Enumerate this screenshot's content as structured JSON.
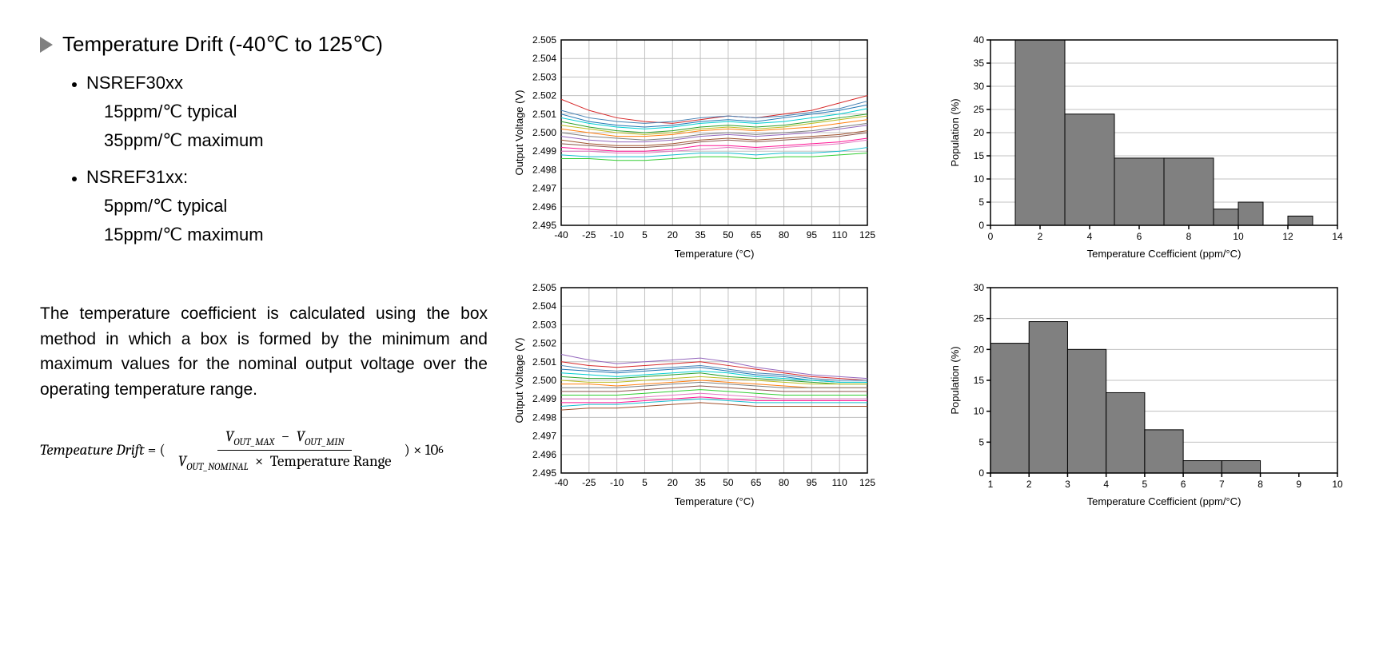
{
  "heading": "Temperature Drift (-40℃ to 125℃)",
  "bullets": [
    {
      "label": "NSREF30xx",
      "lines": [
        "15ppm/℃ typical",
        "35ppm/℃ maximum"
      ]
    },
    {
      "label": "NSREF31xx:",
      "lines": [
        "5ppm/℃ typical",
        "15ppm/℃ maximum"
      ]
    }
  ],
  "paragraph": "The temperature coefficient is calculated using the box method in which a box is formed by the minimum and maximum values for the nominal output voltage over the operating temperature range.",
  "formula": {
    "lhs": "Tempeature Drift",
    "num_a": "V",
    "num_a_sub": "OUT_MAX",
    "num_b": "V",
    "num_b_sub": "OUT_MIN",
    "den_a": "V",
    "den_a_sub": "OUT_NOMINAL",
    "den_b": "Temperature Range",
    "tail": ") × 10",
    "tail_sup": "6"
  },
  "line_chart_top": {
    "xlabel": "Temperature (°C)",
    "ylabel": "Output Voltage (V)",
    "xmin": -40,
    "xmax": 125,
    "xtick_step": 15,
    "ymin": 2.495,
    "ymax": 2.505,
    "ytick_step": 0.001,
    "xticks": [
      "-40",
      "-25",
      "-10",
      "5",
      "20",
      "35",
      "50",
      "65",
      "80",
      "95",
      "110",
      "125"
    ],
    "yticks": [
      "2.495",
      "2.496",
      "2.497",
      "2.498",
      "2.499",
      "2.500",
      "2.501",
      "2.502",
      "2.503",
      "2.504",
      "2.505"
    ],
    "grid_color": "#c0c0c0",
    "series_width": 1,
    "series": [
      {
        "color": "#d62728",
        "y": [
          2.5018,
          2.5012,
          2.5008,
          2.5006,
          2.5005,
          2.5007,
          2.5009,
          2.5008,
          2.501,
          2.5012,
          2.5016,
          2.502
        ]
      },
      {
        "color": "#1f77b4",
        "y": [
          2.501,
          2.5006,
          2.5004,
          2.5003,
          2.5004,
          2.5006,
          2.5007,
          2.5006,
          2.5008,
          2.501,
          2.5012,
          2.5015
        ]
      },
      {
        "color": "#2ca02c",
        "y": [
          2.5006,
          2.5003,
          2.5001,
          2.5,
          2.5001,
          2.5003,
          2.5004,
          2.5003,
          2.5004,
          2.5006,
          2.5008,
          2.501
        ]
      },
      {
        "color": "#ff7f0e",
        "y": [
          2.5002,
          2.5,
          2.4998,
          2.4998,
          2.4999,
          2.5001,
          2.5002,
          2.5001,
          2.5002,
          2.5003,
          2.5005,
          2.5007
        ]
      },
      {
        "color": "#9467bd",
        "y": [
          2.4998,
          2.4996,
          2.4995,
          2.4995,
          2.4996,
          2.4998,
          2.4999,
          2.4998,
          2.4999,
          2.5,
          2.5002,
          2.5004
        ]
      },
      {
        "color": "#8c564b",
        "y": [
          2.4994,
          2.4993,
          2.4992,
          2.4992,
          2.4993,
          2.4995,
          2.4996,
          2.4995,
          2.4996,
          2.4997,
          2.4998,
          2.5
        ]
      },
      {
        "color": "#e377c2",
        "y": [
          2.499,
          2.499,
          2.4989,
          2.4989,
          2.499,
          2.4991,
          2.4992,
          2.4991,
          2.4992,
          2.4993,
          2.4994,
          2.4996
        ]
      },
      {
        "color": "#17becf",
        "y": [
          2.4988,
          2.4987,
          2.4987,
          2.4987,
          2.4988,
          2.4989,
          2.4989,
          2.4988,
          2.4989,
          2.4989,
          2.499,
          2.4992
        ]
      },
      {
        "color": "#bcbd22",
        "y": [
          2.5004,
          2.5002,
          2.5,
          2.4999,
          2.5,
          2.5002,
          2.5003,
          2.5002,
          2.5003,
          2.5005,
          2.5007,
          2.5009
        ]
      },
      {
        "color": "#7f7f7f",
        "y": [
          2.5,
          2.4998,
          2.4997,
          2.4996,
          2.4997,
          2.4999,
          2.5,
          2.4999,
          2.5,
          2.5001,
          2.5003,
          2.5005
        ]
      },
      {
        "color": "#ff1493",
        "y": [
          2.4992,
          2.4991,
          2.499,
          2.499,
          2.4991,
          2.4993,
          2.4993,
          2.4992,
          2.4993,
          2.4994,
          2.4995,
          2.4997
        ]
      },
      {
        "color": "#00ced1",
        "y": [
          2.5008,
          2.5005,
          2.5003,
          2.5002,
          2.5003,
          2.5005,
          2.5006,
          2.5005,
          2.5006,
          2.5008,
          2.501,
          2.5013
        ]
      },
      {
        "color": "#a0522d",
        "y": [
          2.4996,
          2.4994,
          2.4993,
          2.4993,
          2.4994,
          2.4996,
          2.4997,
          2.4996,
          2.4997,
          2.4998,
          2.4999,
          2.5001
        ]
      },
      {
        "color": "#4682b4",
        "y": [
          2.5012,
          2.5008,
          2.5006,
          2.5005,
          2.5006,
          2.5008,
          2.5009,
          2.5008,
          2.5009,
          2.5011,
          2.5013,
          2.5017
        ]
      },
      {
        "color": "#32cd32",
        "y": [
          2.4986,
          2.4986,
          2.4985,
          2.4985,
          2.4986,
          2.4987,
          2.4987,
          2.4986,
          2.4987,
          2.4987,
          2.4988,
          2.4989
        ]
      }
    ]
  },
  "line_chart_bottom": {
    "xlabel": "Temperature (°C)",
    "ylabel": "Output Voltage (V)",
    "xmin": -40,
    "xmax": 125,
    "xtick_step": 15,
    "ymin": 2.495,
    "ymax": 2.505,
    "ytick_step": 0.001,
    "xticks": [
      "-40",
      "-25",
      "-10",
      "5",
      "20",
      "35",
      "50",
      "65",
      "80",
      "95",
      "110",
      "125"
    ],
    "yticks": [
      "2.495",
      "2.496",
      "2.497",
      "2.498",
      "2.499",
      "2.500",
      "2.501",
      "2.502",
      "2.503",
      "2.504",
      "2.505"
    ],
    "grid_color": "#c0c0c0",
    "series_width": 1,
    "series": [
      {
        "color": "#d62728",
        "y": [
          2.501,
          2.5008,
          2.5007,
          2.5008,
          2.5009,
          2.501,
          2.5008,
          2.5006,
          2.5004,
          2.5002,
          2.5001,
          2.5
        ]
      },
      {
        "color": "#1f77b4",
        "y": [
          2.5006,
          2.5005,
          2.5004,
          2.5005,
          2.5006,
          2.5007,
          2.5005,
          2.5003,
          2.5002,
          2.5,
          2.4999,
          2.4999
        ]
      },
      {
        "color": "#2ca02c",
        "y": [
          2.5002,
          2.5001,
          2.5001,
          2.5002,
          2.5003,
          2.5004,
          2.5002,
          2.5001,
          2.5,
          2.4999,
          2.4998,
          2.4998
        ]
      },
      {
        "color": "#ff7f0e",
        "y": [
          2.4998,
          2.4998,
          2.4997,
          2.4998,
          2.4999,
          2.5,
          2.4999,
          2.4998,
          2.4997,
          2.4996,
          2.4996,
          2.4996
        ]
      },
      {
        "color": "#9467bd",
        "y": [
          2.5014,
          2.5011,
          2.5009,
          2.501,
          2.5011,
          2.5012,
          2.501,
          2.5007,
          2.5005,
          2.5003,
          2.5002,
          2.5001
        ]
      },
      {
        "color": "#8c564b",
        "y": [
          2.4994,
          2.4994,
          2.4994,
          2.4995,
          2.4996,
          2.4997,
          2.4996,
          2.4995,
          2.4994,
          2.4994,
          2.4994,
          2.4994
        ]
      },
      {
        "color": "#e377c2",
        "y": [
          2.499,
          2.499,
          2.499,
          2.4991,
          2.4992,
          2.4993,
          2.4992,
          2.4991,
          2.499,
          2.499,
          2.499,
          2.499
        ]
      },
      {
        "color": "#17becf",
        "y": [
          2.4986,
          2.4987,
          2.4987,
          2.4988,
          2.4989,
          2.499,
          2.4989,
          2.4988,
          2.4988,
          2.4988,
          2.4988,
          2.4988
        ]
      },
      {
        "color": "#bcbd22",
        "y": [
          2.5,
          2.4999,
          2.4999,
          2.5,
          2.5001,
          2.5002,
          2.5001,
          2.5,
          2.4999,
          2.4998,
          2.4998,
          2.4998
        ]
      },
      {
        "color": "#7f7f7f",
        "y": [
          2.4996,
          2.4996,
          2.4996,
          2.4997,
          2.4998,
          2.4999,
          2.4998,
          2.4997,
          2.4996,
          2.4996,
          2.4996,
          2.4996
        ]
      },
      {
        "color": "#ff1493",
        "y": [
          2.4988,
          2.4988,
          2.4988,
          2.4989,
          2.499,
          2.4991,
          2.499,
          2.4989,
          2.4989,
          2.4989,
          2.4989,
          2.4989
        ]
      },
      {
        "color": "#00ced1",
        "y": [
          2.5004,
          2.5003,
          2.5002,
          2.5003,
          2.5004,
          2.5005,
          2.5004,
          2.5002,
          2.5001,
          2.5,
          2.4999,
          2.4999
        ]
      },
      {
        "color": "#a0522d",
        "y": [
          2.4984,
          2.4985,
          2.4985,
          2.4986,
          2.4987,
          2.4988,
          2.4987,
          2.4986,
          2.4986,
          2.4986,
          2.4986,
          2.4986
        ]
      },
      {
        "color": "#4682b4",
        "y": [
          2.5008,
          2.5006,
          2.5005,
          2.5006,
          2.5007,
          2.5008,
          2.5006,
          2.5004,
          2.5003,
          2.5001,
          2.5,
          2.5
        ]
      },
      {
        "color": "#32cd32",
        "y": [
          2.4992,
          2.4992,
          2.4992,
          2.4993,
          2.4994,
          2.4995,
          2.4994,
          2.4993,
          2.4992,
          2.4992,
          2.4992,
          2.4992
        ]
      }
    ]
  },
  "hist_top": {
    "xlabel": "Temperature Ccefficient (ppm/°C)",
    "ylabel": "Population (%)",
    "xmin": 0,
    "xmax": 14,
    "xtick_step": 2,
    "ymin": 0,
    "ymax": 40,
    "ytick_step": 5,
    "bar_color": "#808080",
    "bars": [
      {
        "x": 1,
        "w": 2,
        "h": 40
      },
      {
        "x": 3,
        "w": 2,
        "h": 24
      },
      {
        "x": 5,
        "w": 2,
        "h": 14.5
      },
      {
        "x": 7,
        "w": 2,
        "h": 14.5
      },
      {
        "x": 9,
        "w": 1,
        "h": 3.5
      },
      {
        "x": 10,
        "w": 1,
        "h": 5
      },
      {
        "x": 12,
        "w": 1,
        "h": 2
      }
    ]
  },
  "hist_bottom": {
    "xlabel": "Temperature Ccefficient (ppm/°C)",
    "ylabel": "Population (%)",
    "xmin": 1,
    "xmax": 10,
    "xtick_step": 1,
    "ymin": 0,
    "ymax": 30,
    "ytick_step": 5,
    "bar_color": "#808080",
    "bars": [
      {
        "x": 1,
        "w": 1,
        "h": 21
      },
      {
        "x": 2,
        "w": 1,
        "h": 24.5
      },
      {
        "x": 3,
        "w": 1,
        "h": 20
      },
      {
        "x": 4,
        "w": 1,
        "h": 13
      },
      {
        "x": 5,
        "w": 1,
        "h": 7
      },
      {
        "x": 6,
        "w": 1,
        "h": 2
      },
      {
        "x": 7,
        "w": 1,
        "h": 2
      }
    ]
  }
}
